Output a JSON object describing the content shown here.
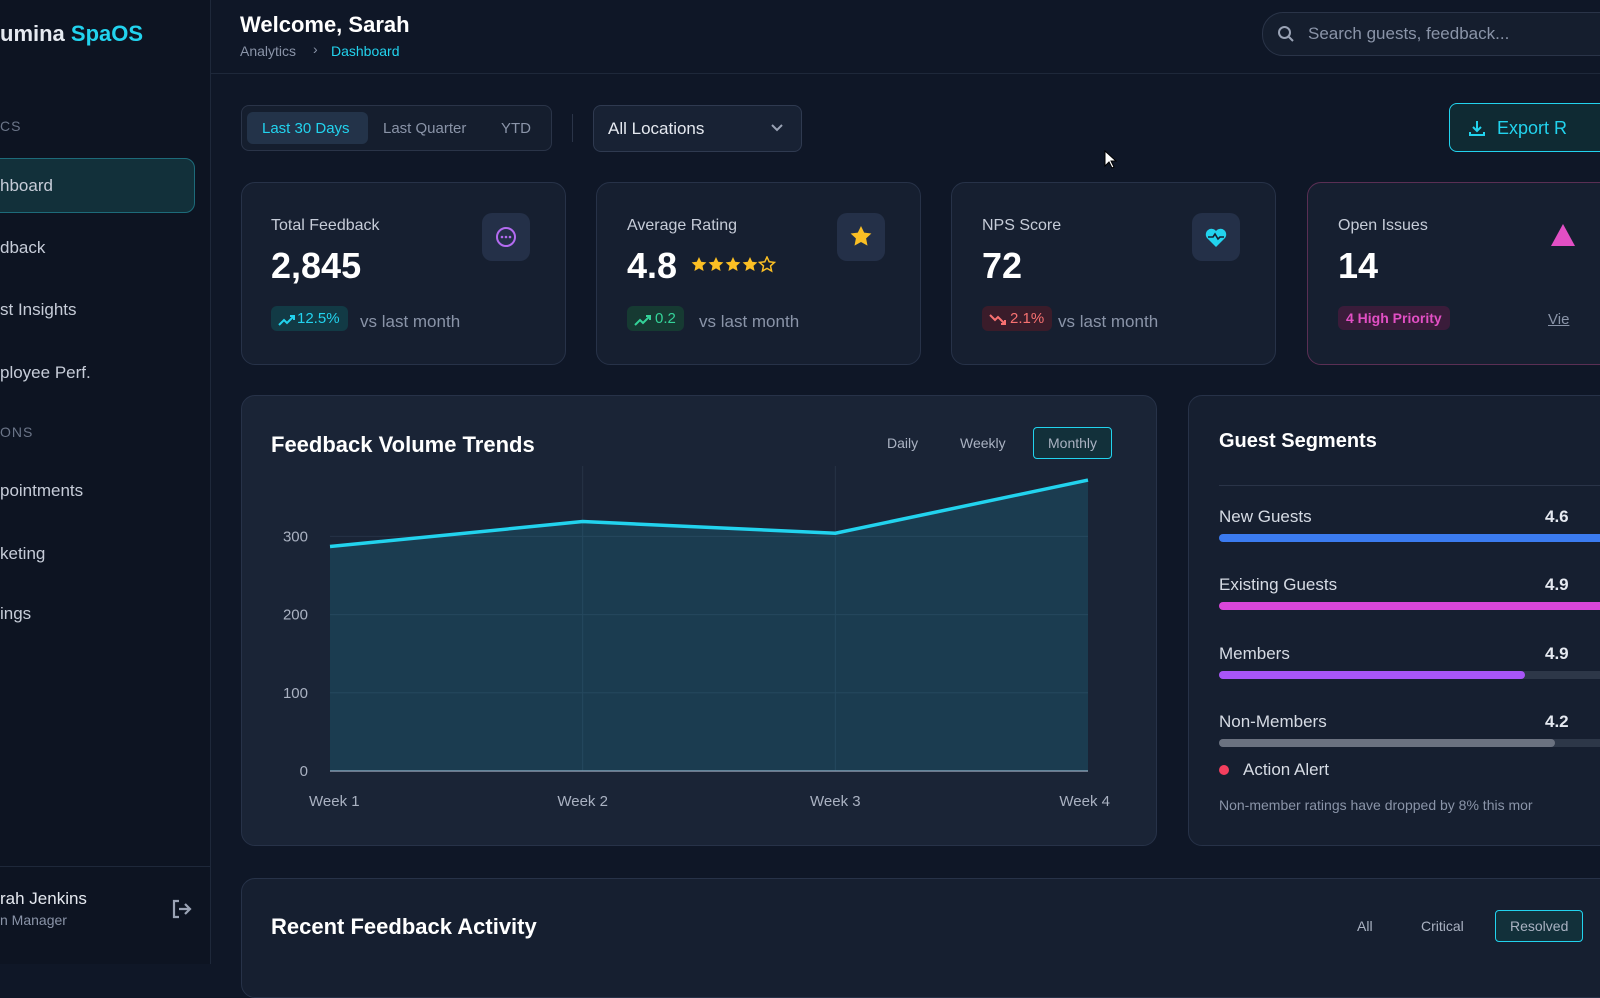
{
  "sidebar": {
    "brand": "umina",
    "brand_accent": "SpaOS",
    "sections": [
      "CS",
      "ONS"
    ],
    "items": [
      "hboard",
      "dback",
      "st Insights",
      "ployee Perf.",
      "pointments",
      "keting",
      "ings"
    ],
    "user_name": "rah Jenkins",
    "user_role": "n Manager"
  },
  "header": {
    "title": "Welcome, Sarah",
    "breadcrumb": [
      "Analytics",
      "Dashboard"
    ],
    "search_placeholder": "Search guests, feedback..."
  },
  "filters": {
    "ranges": [
      "Last 30 Days",
      "Last Quarter",
      "YTD"
    ],
    "location": "All Locations",
    "export": "Export R"
  },
  "kpis": [
    {
      "label": "Total Feedback",
      "value": "2,845",
      "change": "12.5%",
      "note": "vs last month"
    },
    {
      "label": "Average Rating",
      "value": "4.8",
      "change": "0.2",
      "note": "vs last month"
    },
    {
      "label": "NPS Score",
      "value": "72",
      "change": "2.1%",
      "note": "vs last month"
    },
    {
      "label": "Open Issues",
      "value": "14",
      "badge": "4 High Priority",
      "link": "Vie"
    }
  ],
  "chart_data": {
    "type": "line",
    "title": "Feedback Volume Trends",
    "views": [
      "Daily",
      "Weekly",
      "Monthly"
    ],
    "categories": [
      "Week 1",
      "Week 2",
      "Week 3",
      "Week 4"
    ],
    "values": [
      287,
      319,
      304,
      372
    ],
    "color": "#22d3ee",
    "ylim": [
      0,
      390
    ],
    "yticks": [
      0,
      100,
      200,
      300
    ],
    "grid": true
  },
  "segments": {
    "title": "Guest Segments",
    "items": [
      {
        "name": "New Guests",
        "rating": "4.6"
      },
      {
        "name": "Existing Guests",
        "rating": "4.9"
      },
      {
        "name": "Members",
        "rating": "4.9"
      },
      {
        "name": "Non-Members",
        "rating": "4.2"
      }
    ],
    "alert_title": "Action Alert",
    "alert_text": "Non-member ratings have dropped by 8% this mor"
  },
  "recent": {
    "title": "Recent Feedback Activity",
    "tabs": [
      "All",
      "Critical",
      "Resolved"
    ]
  }
}
